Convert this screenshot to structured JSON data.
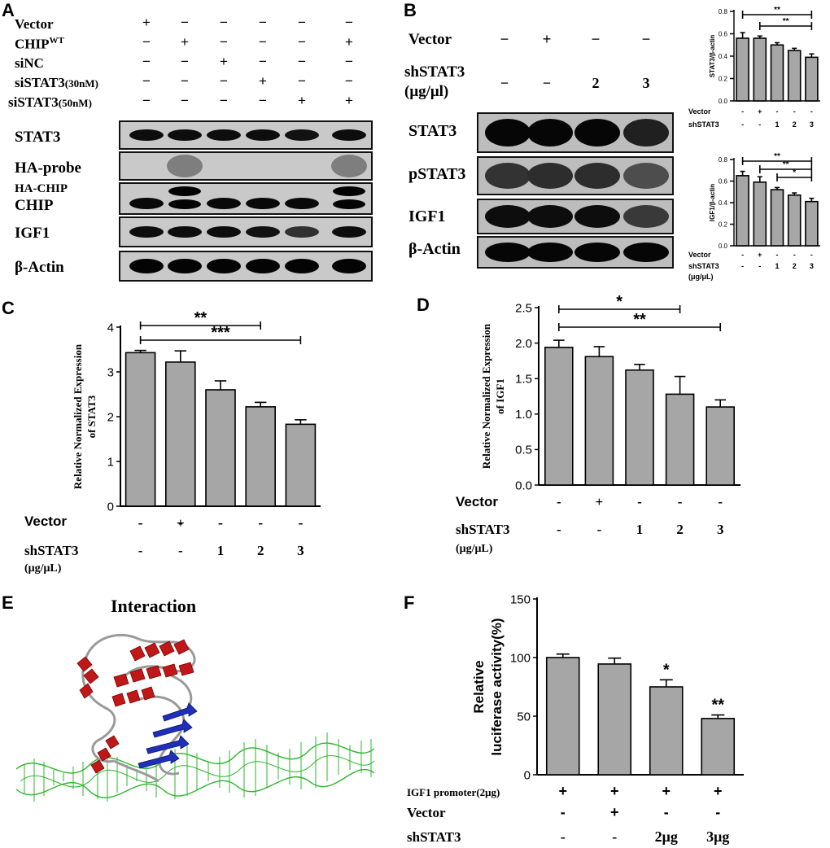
{
  "panelA": {
    "letter": "A",
    "conditions": [
      {
        "label": "Vector",
        "signs": [
          "+",
          "−",
          "−",
          "−",
          "−",
          "−"
        ]
      },
      {
        "label": "CHIP",
        "sup": "WT",
        "signs": [
          "−",
          "+",
          "−",
          "−",
          "−",
          "+"
        ]
      },
      {
        "label": "siNC",
        "signs": [
          "−",
          "−",
          "+",
          "−",
          "−",
          "−"
        ]
      },
      {
        "label": "siSTAT3",
        "sub": "(30nM)",
        "signs": [
          "−",
          "−",
          "−",
          "+",
          "−",
          "−"
        ]
      },
      {
        "label": "siSTAT3",
        "sub": "(50nM)",
        "signs": [
          "−",
          "−",
          "−",
          "−",
          "+",
          "+"
        ]
      }
    ],
    "blots": [
      "STAT3",
      "HA-probe",
      "HA-CHIP",
      "CHIP",
      "IGF1",
      "β-Actin"
    ]
  },
  "panelB": {
    "letter": "B",
    "vector_label": "Vector",
    "vector_signs": [
      "−",
      "+",
      "−",
      "−"
    ],
    "sh_label": "shSTAT3",
    "sh_unit": "(μg/μl)",
    "sh_signs": [
      "−",
      "−",
      "2",
      "3"
    ],
    "blots": [
      "STAT3",
      "pSTAT3",
      "IGF1",
      "β-Actin"
    ],
    "mini_vector_label": "Vector",
    "mini_sh_label": "shSTAT3",
    "mini_sh_unit": "(μg/μL)"
  },
  "panelC": {
    "letter": "C",
    "vector_label": "Vector",
    "sh_label": "shSTAT3",
    "sh_unit": "(μg/μL)"
  },
  "panelD": {
    "letter": "D",
    "vector_label": "Vector",
    "sh_label": "shSTAT3",
    "sh_unit": "(μg/μL)"
  },
  "panelE": {
    "letter": "E",
    "title": "Interaction"
  },
  "panelF": {
    "letter": "F",
    "promoter_label": "IGF1 promoter(2μg)",
    "vector_label": "Vector",
    "sh_label": "shSTAT3"
  },
  "chart_data": [
    {
      "id": "B-top",
      "type": "bar",
      "categories": [
        "1",
        "2",
        "3",
        "4",
        "5"
      ],
      "values": [
        0.56,
        0.56,
        0.5,
        0.45,
        0.39
      ],
      "errors": [
        0.05,
        0.02,
        0.02,
        0.02,
        0.03
      ],
      "ylabel": "STAT3/β-actin",
      "ylim": [
        0,
        0.8
      ],
      "yticks": [
        0.0,
        0.2,
        0.4,
        0.6,
        0.8
      ],
      "row1": [
        "-",
        "+",
        "-",
        "-",
        "-"
      ],
      "row2": [
        "-",
        "-",
        "1",
        "2",
        "3"
      ],
      "sig": [
        {
          "from": 0,
          "to": 4,
          "label": "**"
        },
        {
          "from": 1,
          "to": 4,
          "label": "**"
        }
      ]
    },
    {
      "id": "B-bottom",
      "type": "bar",
      "categories": [
        "1",
        "2",
        "3",
        "4",
        "5"
      ],
      "values": [
        0.65,
        0.59,
        0.52,
        0.47,
        0.41
      ],
      "errors": [
        0.04,
        0.05,
        0.02,
        0.02,
        0.03
      ],
      "ylabel": "IGF1/β-actin",
      "ylim": [
        0,
        0.8
      ],
      "yticks": [
        0.0,
        0.2,
        0.4,
        0.6,
        0.8
      ],
      "row1": [
        "-",
        "+",
        "-",
        "-",
        "-"
      ],
      "row2": [
        "-",
        "-",
        "1",
        "2",
        "3"
      ],
      "sig": [
        {
          "from": 0,
          "to": 4,
          "label": "**"
        },
        {
          "from": 1,
          "to": 4,
          "label": "**"
        },
        {
          "from": 2,
          "to": 4,
          "label": "*"
        }
      ]
    },
    {
      "id": "C",
      "type": "bar",
      "categories": [
        "1",
        "2",
        "3",
        "4",
        "5"
      ],
      "values": [
        3.43,
        3.22,
        2.6,
        2.22,
        1.83
      ],
      "errors": [
        0.05,
        0.25,
        0.2,
        0.1,
        0.1
      ],
      "ylabel": "Relative Normalized Expression of STAT3",
      "ylim": [
        0,
        4
      ],
      "yticks": [
        0,
        1,
        2,
        3,
        4
      ],
      "row1": [
        "-",
        "+",
        "-",
        "-",
        "-"
      ],
      "row2": [
        "-",
        "-",
        "1",
        "2",
        "3"
      ],
      "sig": [
        {
          "from": 0,
          "to": 3,
          "label": "**"
        },
        {
          "from": 0,
          "to": 4,
          "label": "***"
        }
      ]
    },
    {
      "id": "D",
      "type": "bar",
      "categories": [
        "1",
        "2",
        "3",
        "4",
        "5"
      ],
      "values": [
        1.94,
        1.81,
        1.62,
        1.28,
        1.1
      ],
      "errors": [
        0.1,
        0.14,
        0.08,
        0.25,
        0.1
      ],
      "ylabel": "Relative Normalized Expression of IGF1",
      "ylim": [
        0,
        2.5
      ],
      "yticks": [
        0.0,
        0.5,
        1.0,
        1.5,
        2.0,
        2.5
      ],
      "row1": [
        "-",
        "+",
        "-",
        "-",
        "-"
      ],
      "row2": [
        "-",
        "-",
        "1",
        "2",
        "3"
      ],
      "sig": [
        {
          "from": 0,
          "to": 3,
          "label": "*"
        },
        {
          "from": 0,
          "to": 4,
          "label": "**"
        }
      ]
    },
    {
      "id": "F",
      "type": "bar",
      "categories": [
        "1",
        "2",
        "3",
        "4"
      ],
      "values": [
        100,
        94.5,
        75,
        48
      ],
      "errors": [
        3,
        5,
        6,
        3
      ],
      "ylabel": "Relative luciferase activity(%)",
      "ylim": [
        0,
        150
      ],
      "yticks": [
        0,
        50,
        100,
        150
      ],
      "row0": [
        "+",
        "+",
        "+",
        "+"
      ],
      "row1": [
        "-",
        "+",
        "-",
        "-"
      ],
      "row2": [
        "-",
        "-",
        "2μg",
        "3μg"
      ],
      "bar_labels": [
        "",
        "",
        "*",
        "**"
      ]
    }
  ]
}
